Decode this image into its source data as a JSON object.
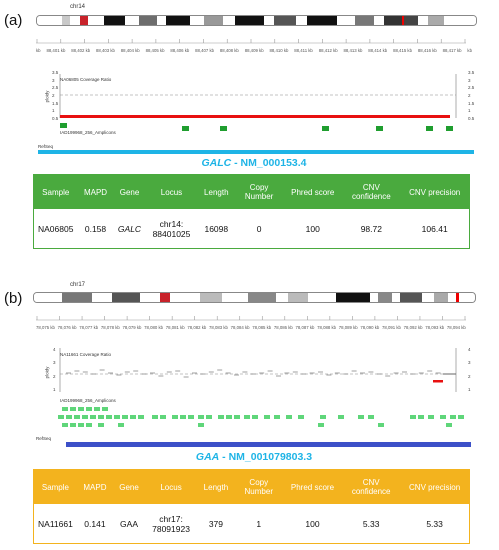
{
  "panel_a": {
    "label": "(a)",
    "chrom": "chr14",
    "ticks": [
      "kb",
      "88,401 kb",
      "88,402 kb",
      "88,403 kb",
      "88,404 kb",
      "88,405 kb",
      "88,406 kb",
      "88,407 kb",
      "88,408 kb",
      "88,409 kb",
      "88,410 kb",
      "88,411 kb",
      "88,412 kb",
      "88,413 kb",
      "88,414 kb",
      "88,415 kb",
      "88,416 kb",
      "88,417 kb",
      "kb"
    ],
    "coverage_title": "NA06805 Coverage Ratio",
    "ploidy_label": "ploidy",
    "y_ticks": [
      "3.5",
      "3",
      "2.5",
      "2",
      "1.5",
      "1",
      "0.5"
    ],
    "amplicons_title": "IAD199968_256_Amplicons",
    "refseq_label": "RefSeq",
    "gene_name": "GALC",
    "transcript": " - NM_000153.4",
    "table": {
      "headers": [
        "Sample",
        "MAPD",
        "Gene",
        "Locus",
        "Length",
        "Copy Number",
        "Phred score",
        "CNV confidence",
        "CNV precision"
      ],
      "row": {
        "sample": "NA06805",
        "mapd": "0.158",
        "gene": "GALC",
        "locus": "chr14: 88401025",
        "length": "16098",
        "copy": "0",
        "phred": "100",
        "confidence": "98.72",
        "precision": "106.41"
      }
    }
  },
  "panel_b": {
    "label": "(b)",
    "chrom": "chr17",
    "ticks": [
      "78,075 kb",
      "78,076 kb",
      "78,077 kb",
      "78,078 kb",
      "78,079 kb",
      "78,080 kb",
      "78,081 kb",
      "78,082 kb",
      "78,083 kb",
      "78,084 kb",
      "78,085 kb",
      "78,086 kb",
      "78,087 kb",
      "78,088 kb",
      "78,089 kb",
      "78,090 kb",
      "78,091 kb",
      "78,092 kb",
      "78,093 kb",
      "78,094 kb"
    ],
    "coverage_title": "NA11661 Coverage Ratio",
    "ploidy_label": "ploidy",
    "y_ticks": [
      "4",
      "3",
      "2",
      "1"
    ],
    "amplicons_title": "IAD199968_256_Amplicons",
    "refseq_label": "RefSeq",
    "gene_name": "GAA",
    "transcript": " - NM_001079803.3",
    "table": {
      "headers": [
        "Sample",
        "MAPD",
        "Gene",
        "Locus",
        "Length",
        "Copy Number",
        "Phred score",
        "CNV confidence",
        "CNV precision"
      ],
      "row": {
        "sample": "NA11661",
        "mapd": "0.141",
        "gene": "GAA",
        "locus": "chr17: 78091923",
        "length": "379",
        "copy": "1",
        "phred": "100",
        "confidence": "5.33",
        "precision": "5.33"
      }
    }
  },
  "colors": {
    "green": "#4aaa3e",
    "orange": "#f3b31e",
    "gene_a": "#1eb4e6",
    "gene_b": "#3c50c8",
    "amp_a": "#1f9e2f",
    "amp_b": "#5fd67a",
    "cnv": "#e81010"
  }
}
